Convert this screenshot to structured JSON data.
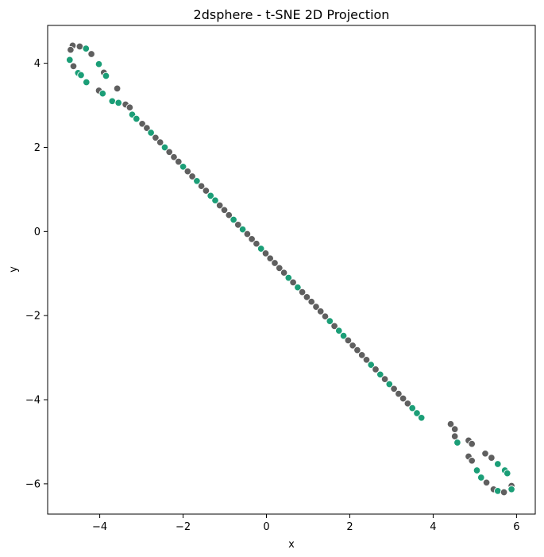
{
  "chart_data": {
    "type": "scatter",
    "title": "2dsphere - t-SNE 2D Projection",
    "xlabel": "x",
    "ylabel": "y",
    "xlim": [
      -5.25,
      6.45
    ],
    "ylim": [
      -6.72,
      4.9
    ],
    "xticks": [
      -4,
      -2,
      0,
      2,
      4,
      6
    ],
    "yticks": [
      4,
      2,
      0,
      -2,
      -4,
      -6
    ],
    "xtick_labels": [
      "−4",
      "−2",
      "0",
      "2",
      "4",
      "6"
    ],
    "ytick_labels": [
      "4",
      "2",
      "0",
      "−2",
      "−4",
      "−6"
    ],
    "grid": false,
    "legend": "none",
    "colors": {
      "grey": "#5f5f5f",
      "green": "#1b9e77"
    },
    "points": [
      {
        "x": -4.65,
        "y": 4.42,
        "c": "grey"
      },
      {
        "x": -4.48,
        "y": 4.4,
        "c": "grey"
      },
      {
        "x": -4.33,
        "y": 4.35,
        "c": "green"
      },
      {
        "x": -4.7,
        "y": 4.32,
        "c": "grey"
      },
      {
        "x": -4.2,
        "y": 4.22,
        "c": "grey"
      },
      {
        "x": -4.72,
        "y": 4.08,
        "c": "green"
      },
      {
        "x": -4.02,
        "y": 3.98,
        "c": "green"
      },
      {
        "x": -4.63,
        "y": 3.93,
        "c": "grey"
      },
      {
        "x": -3.9,
        "y": 3.78,
        "c": "grey"
      },
      {
        "x": -4.52,
        "y": 3.77,
        "c": "green"
      },
      {
        "x": -4.45,
        "y": 3.72,
        "c": "green"
      },
      {
        "x": -3.85,
        "y": 3.7,
        "c": "green"
      },
      {
        "x": -4.32,
        "y": 3.55,
        "c": "green"
      },
      {
        "x": -3.58,
        "y": 3.4,
        "c": "grey"
      },
      {
        "x": -4.02,
        "y": 3.35,
        "c": "grey"
      },
      {
        "x": -3.93,
        "y": 3.28,
        "c": "green"
      },
      {
        "x": -3.7,
        "y": 3.1,
        "c": "green"
      },
      {
        "x": -3.55,
        "y": 3.06,
        "c": "green"
      },
      {
        "x": -3.38,
        "y": 3.02,
        "c": "grey"
      },
      {
        "x": -3.28,
        "y": 2.95,
        "c": "grey"
      },
      {
        "x": -3.22,
        "y": 2.78,
        "c": "green"
      },
      {
        "x": -3.12,
        "y": 2.68,
        "c": "green"
      },
      {
        "x": -2.98,
        "y": 2.56,
        "c": "grey"
      },
      {
        "x": -2.87,
        "y": 2.46,
        "c": "grey"
      },
      {
        "x": -2.77,
        "y": 2.35,
        "c": "green"
      },
      {
        "x": -2.66,
        "y": 2.23,
        "c": "grey"
      },
      {
        "x": -2.55,
        "y": 2.12,
        "c": "grey"
      },
      {
        "x": -2.44,
        "y": 2.0,
        "c": "green"
      },
      {
        "x": -2.33,
        "y": 1.89,
        "c": "grey"
      },
      {
        "x": -2.22,
        "y": 1.77,
        "c": "grey"
      },
      {
        "x": -2.11,
        "y": 1.66,
        "c": "grey"
      },
      {
        "x": -2.0,
        "y": 1.54,
        "c": "green"
      },
      {
        "x": -1.89,
        "y": 1.43,
        "c": "grey"
      },
      {
        "x": -1.78,
        "y": 1.31,
        "c": "grey"
      },
      {
        "x": -1.67,
        "y": 1.2,
        "c": "green"
      },
      {
        "x": -1.56,
        "y": 1.08,
        "c": "grey"
      },
      {
        "x": -1.45,
        "y": 0.97,
        "c": "grey"
      },
      {
        "x": -1.34,
        "y": 0.85,
        "c": "green"
      },
      {
        "x": -1.23,
        "y": 0.74,
        "c": "green"
      },
      {
        "x": -1.12,
        "y": 0.62,
        "c": "grey"
      },
      {
        "x": -1.01,
        "y": 0.51,
        "c": "grey"
      },
      {
        "x": -0.9,
        "y": 0.39,
        "c": "grey"
      },
      {
        "x": -0.79,
        "y": 0.28,
        "c": "green"
      },
      {
        "x": -0.68,
        "y": 0.16,
        "c": "grey"
      },
      {
        "x": -0.57,
        "y": 0.05,
        "c": "green"
      },
      {
        "x": -0.46,
        "y": -0.06,
        "c": "grey"
      },
      {
        "x": -0.35,
        "y": -0.18,
        "c": "grey"
      },
      {
        "x": -0.24,
        "y": -0.29,
        "c": "grey"
      },
      {
        "x": -0.13,
        "y": -0.41,
        "c": "green"
      },
      {
        "x": -0.02,
        "y": -0.52,
        "c": "grey"
      },
      {
        "x": 0.09,
        "y": -0.64,
        "c": "grey"
      },
      {
        "x": 0.2,
        "y": -0.75,
        "c": "grey"
      },
      {
        "x": 0.31,
        "y": -0.87,
        "c": "grey"
      },
      {
        "x": 0.42,
        "y": -0.98,
        "c": "grey"
      },
      {
        "x": 0.53,
        "y": -1.1,
        "c": "green"
      },
      {
        "x": 0.64,
        "y": -1.21,
        "c": "grey"
      },
      {
        "x": 0.75,
        "y": -1.33,
        "c": "green"
      },
      {
        "x": 0.86,
        "y": -1.44,
        "c": "grey"
      },
      {
        "x": 0.97,
        "y": -1.56,
        "c": "grey"
      },
      {
        "x": 1.08,
        "y": -1.67,
        "c": "grey"
      },
      {
        "x": 1.19,
        "y": -1.79,
        "c": "grey"
      },
      {
        "x": 1.3,
        "y": -1.9,
        "c": "grey"
      },
      {
        "x": 1.41,
        "y": -2.02,
        "c": "grey"
      },
      {
        "x": 1.52,
        "y": -2.13,
        "c": "green"
      },
      {
        "x": 1.63,
        "y": -2.25,
        "c": "grey"
      },
      {
        "x": 1.74,
        "y": -2.36,
        "c": "green"
      },
      {
        "x": 1.85,
        "y": -2.48,
        "c": "green"
      },
      {
        "x": 1.96,
        "y": -2.59,
        "c": "grey"
      },
      {
        "x": 2.07,
        "y": -2.71,
        "c": "grey"
      },
      {
        "x": 2.18,
        "y": -2.82,
        "c": "grey"
      },
      {
        "x": 2.29,
        "y": -2.94,
        "c": "grey"
      },
      {
        "x": 2.4,
        "y": -3.05,
        "c": "grey"
      },
      {
        "x": 2.51,
        "y": -3.17,
        "c": "green"
      },
      {
        "x": 2.62,
        "y": -3.28,
        "c": "grey"
      },
      {
        "x": 2.73,
        "y": -3.4,
        "c": "green"
      },
      {
        "x": 2.84,
        "y": -3.51,
        "c": "grey"
      },
      {
        "x": 2.95,
        "y": -3.63,
        "c": "green"
      },
      {
        "x": 3.06,
        "y": -3.74,
        "c": "grey"
      },
      {
        "x": 3.17,
        "y": -3.86,
        "c": "grey"
      },
      {
        "x": 3.28,
        "y": -3.97,
        "c": "grey"
      },
      {
        "x": 3.39,
        "y": -4.09,
        "c": "grey"
      },
      {
        "x": 3.5,
        "y": -4.2,
        "c": "green"
      },
      {
        "x": 3.61,
        "y": -4.32,
        "c": "green"
      },
      {
        "x": 3.72,
        "y": -4.43,
        "c": "green"
      },
      {
        "x": 4.42,
        "y": -4.58,
        "c": "grey"
      },
      {
        "x": 4.52,
        "y": -4.7,
        "c": "grey"
      },
      {
        "x": 4.52,
        "y": -4.87,
        "c": "grey"
      },
      {
        "x": 4.85,
        "y": -4.97,
        "c": "grey"
      },
      {
        "x": 4.58,
        "y": -5.02,
        "c": "green"
      },
      {
        "x": 4.93,
        "y": -5.05,
        "c": "grey"
      },
      {
        "x": 5.25,
        "y": -5.28,
        "c": "grey"
      },
      {
        "x": 4.85,
        "y": -5.35,
        "c": "grey"
      },
      {
        "x": 5.4,
        "y": -5.38,
        "c": "grey"
      },
      {
        "x": 4.93,
        "y": -5.45,
        "c": "grey"
      },
      {
        "x": 5.55,
        "y": -5.53,
        "c": "green"
      },
      {
        "x": 5.05,
        "y": -5.68,
        "c": "green"
      },
      {
        "x": 5.72,
        "y": -5.68,
        "c": "green"
      },
      {
        "x": 5.78,
        "y": -5.75,
        "c": "green"
      },
      {
        "x": 5.15,
        "y": -5.85,
        "c": "green"
      },
      {
        "x": 5.28,
        "y": -5.97,
        "c": "grey"
      },
      {
        "x": 5.88,
        "y": -6.05,
        "c": "grey"
      },
      {
        "x": 5.45,
        "y": -6.13,
        "c": "grey"
      },
      {
        "x": 5.88,
        "y": -6.13,
        "c": "green"
      },
      {
        "x": 5.55,
        "y": -6.17,
        "c": "green"
      },
      {
        "x": 5.7,
        "y": -6.2,
        "c": "grey"
      }
    ]
  }
}
